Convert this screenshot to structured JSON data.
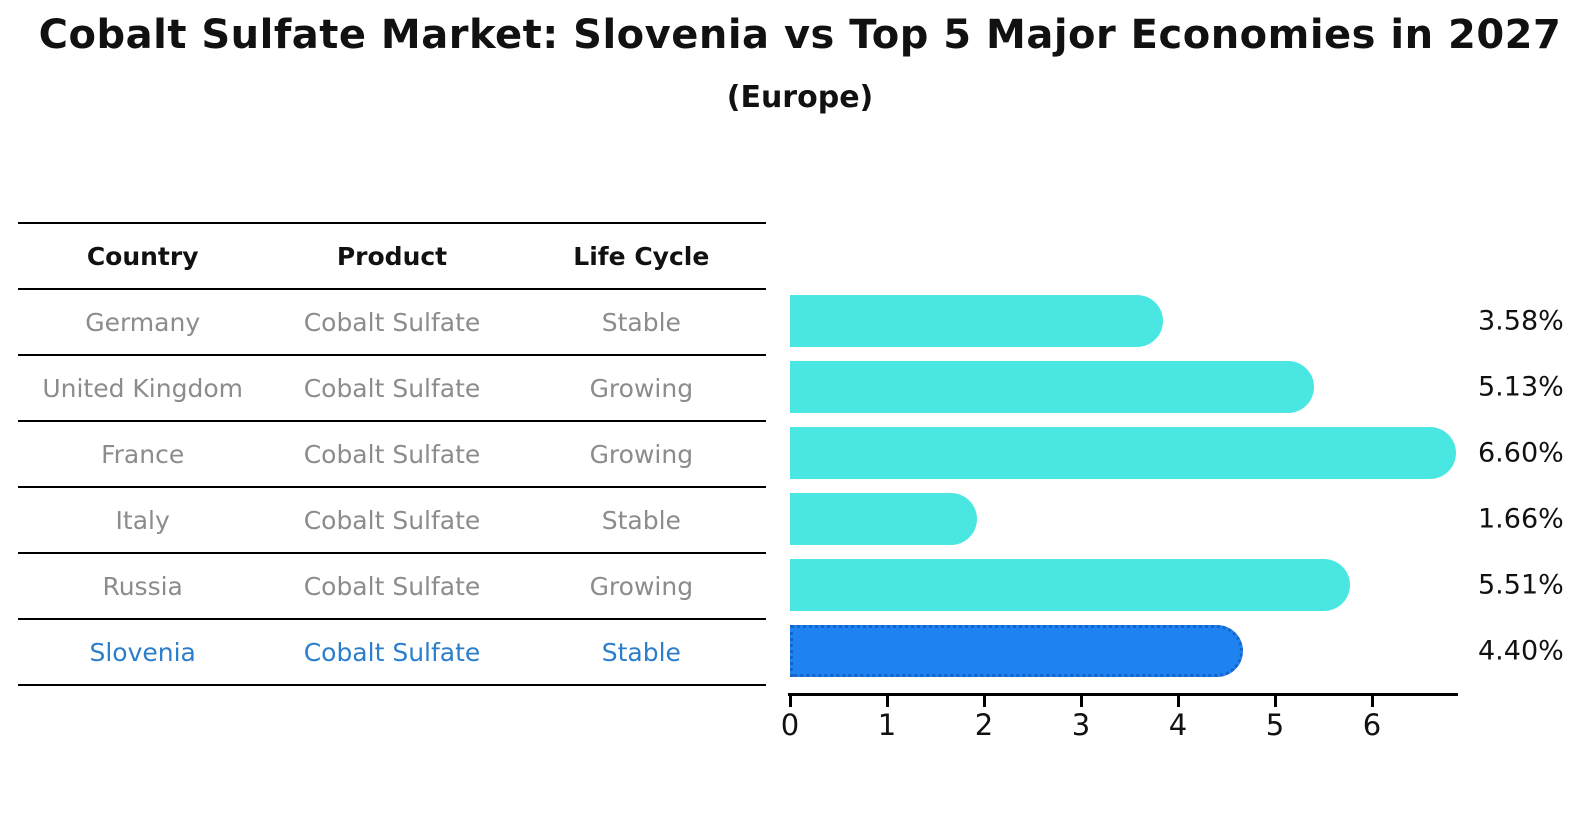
{
  "title": "Cobalt Sulfate Market: Slovenia vs Top 5 Major Economies in 2027",
  "subtitle": "(Europe)",
  "table": {
    "headers": [
      "Country",
      "Product",
      "Life Cycle"
    ],
    "rows": [
      {
        "country": "Germany",
        "product": "Cobalt Sulfate",
        "life_cycle": "Stable",
        "value": 3.58,
        "value_label": "3.58%",
        "highlighted": false
      },
      {
        "country": "United Kingdom",
        "product": "Cobalt Sulfate",
        "life_cycle": "Growing",
        "value": 5.13,
        "value_label": "5.13%",
        "highlighted": false
      },
      {
        "country": "France",
        "product": "Cobalt Sulfate",
        "life_cycle": "Growing",
        "value": 6.6,
        "value_label": "6.60%",
        "highlighted": false
      },
      {
        "country": "Italy",
        "product": "Cobalt Sulfate",
        "life_cycle": "Stable",
        "value": 1.66,
        "value_label": "1.66%",
        "highlighted": false
      },
      {
        "country": "Russia",
        "product": "Cobalt Sulfate",
        "life_cycle": "Growing",
        "value": 5.51,
        "value_label": "5.51%",
        "highlighted": false
      },
      {
        "country": "Slovenia",
        "product": "Cobalt Sulfate",
        "life_cycle": "Stable",
        "value": 4.4,
        "value_label": "4.40%",
        "highlighted": true
      }
    ]
  },
  "chart_data": {
    "type": "bar",
    "orientation": "horizontal",
    "title": "Cobalt Sulfate Market: Slovenia vs Top 5 Major Economies in 2027",
    "subtitle": "(Europe)",
    "categories": [
      "Germany",
      "United Kingdom",
      "France",
      "Italy",
      "Russia",
      "Slovenia"
    ],
    "values": [
      3.58,
      5.13,
      6.6,
      1.66,
      5.51,
      4.4
    ],
    "value_labels": [
      "3.58%",
      "5.13%",
      "6.60%",
      "1.66%",
      "5.51%",
      "4.40%"
    ],
    "x_ticks": [
      0,
      1,
      2,
      3,
      4,
      5,
      6
    ],
    "xlim": [
      0,
      6.9
    ],
    "grid": false,
    "legend": false,
    "highlight_category": "Slovenia",
    "colors": {
      "bar_default": "#4ae6e2",
      "bar_highlight": "#1e82f0",
      "bar_highlight_border": "#1565c8",
      "highlight_text": "#2b7ecc",
      "table_text": "#8c8c8c",
      "header_text": "#111111"
    }
  }
}
